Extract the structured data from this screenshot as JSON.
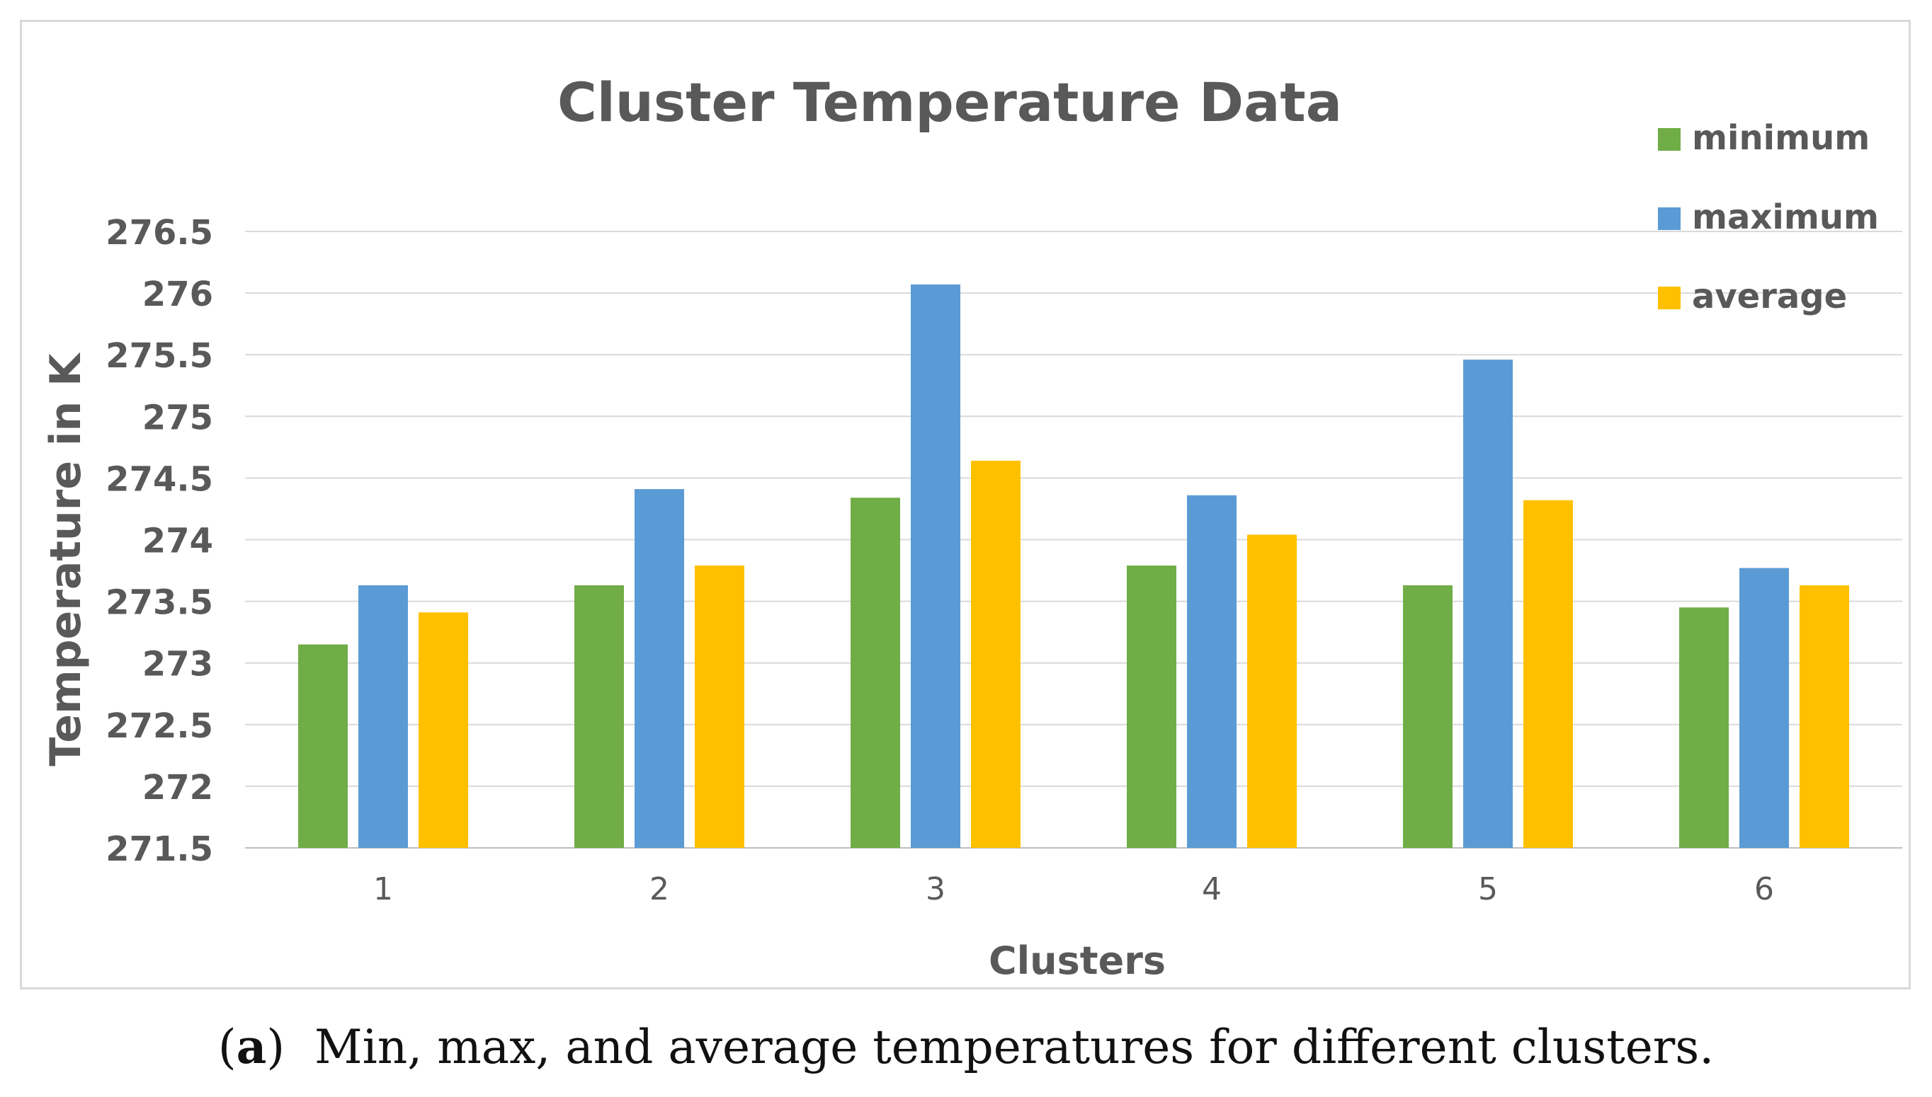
{
  "chart_data": {
    "type": "bar",
    "title": "Cluster Temperature Data",
    "xlabel": "Clusters",
    "ylabel": "Temperature in K",
    "categories": [
      "1",
      "2",
      "3",
      "4",
      "5",
      "6"
    ],
    "ylim": [
      271.5,
      276.5
    ],
    "yticks": [
      271.5,
      272,
      272.5,
      273,
      273.5,
      274,
      274.5,
      275,
      275.5,
      276,
      276.5
    ],
    "ytick_labels": [
      "271.5",
      "272",
      "272.5",
      "273",
      "273.5",
      "274",
      "274.5",
      "275",
      "275.5",
      "276",
      "276.5"
    ],
    "grid": true,
    "legend_position": "top-right",
    "series": [
      {
        "name": "minimum",
        "color": "#70AD47",
        "values": [
          273.15,
          273.63,
          274.34,
          273.79,
          273.63,
          273.45
        ]
      },
      {
        "name": "maximum",
        "color": "#5B9BD5",
        "values": [
          273.63,
          274.41,
          276.07,
          274.36,
          275.46,
          273.77
        ]
      },
      {
        "name": "average",
        "color": "#FFC000",
        "values": [
          273.41,
          273.79,
          274.64,
          274.04,
          274.32,
          273.63
        ]
      }
    ]
  },
  "caption": {
    "label": "a",
    "text": "Min, max, and average temperatures for different clusters."
  }
}
